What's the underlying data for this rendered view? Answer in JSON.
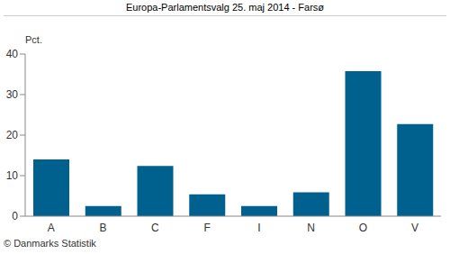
{
  "chart_data": {
    "type": "bar",
    "title": "Europa-Parlamentsvalg 25. maj 2014 - Farsø",
    "ylabel": "Pct.",
    "annotations": [
      "© Danmarks Statistik"
    ],
    "categories": [
      "A",
      "B",
      "C",
      "F",
      "I",
      "N",
      "O",
      "V"
    ],
    "values": [
      14,
      2.5,
      12.4,
      5.4,
      2.5,
      5.9,
      35.8,
      22.7
    ],
    "color": "#00618f",
    "ylim": [
      0,
      40
    ],
    "yticks": [
      0,
      10,
      20,
      30,
      40
    ],
    "grid": false
  }
}
